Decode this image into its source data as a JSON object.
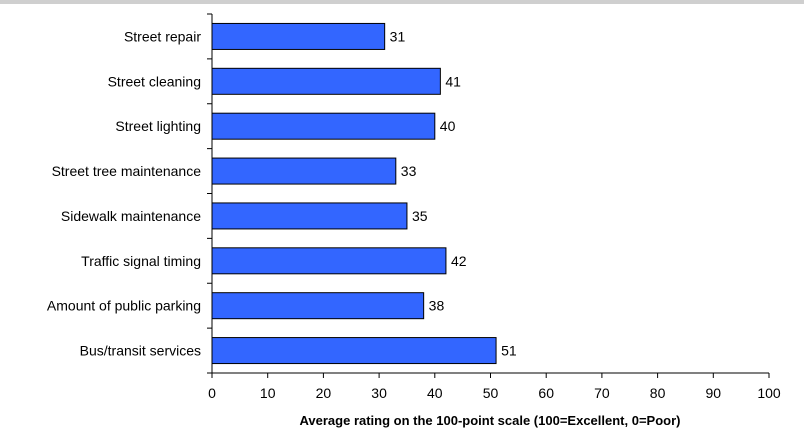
{
  "chart_data": {
    "type": "bar",
    "orientation": "horizontal",
    "title": "",
    "categories": [
      "Street repair",
      "Street cleaning",
      "Street lighting",
      "Street tree maintenance",
      "Sidewalk maintenance",
      "Traffic signal timing",
      "Amount of public parking",
      "Bus/transit services"
    ],
    "values": [
      31,
      41,
      40,
      33,
      35,
      42,
      38,
      51
    ],
    "xlabel": "Average rating on the 100-point scale (100=Excellent, 0=Poor)",
    "ylabel": "",
    "xlim": [
      0,
      100
    ],
    "xticks": [
      0,
      10,
      20,
      30,
      40,
      50,
      60,
      70,
      80,
      90,
      100
    ],
    "grid": false,
    "legend": "none",
    "colors": {
      "bar_fill": "#3366ff",
      "bar_stroke": "#000000",
      "axis": "#000000"
    }
  }
}
